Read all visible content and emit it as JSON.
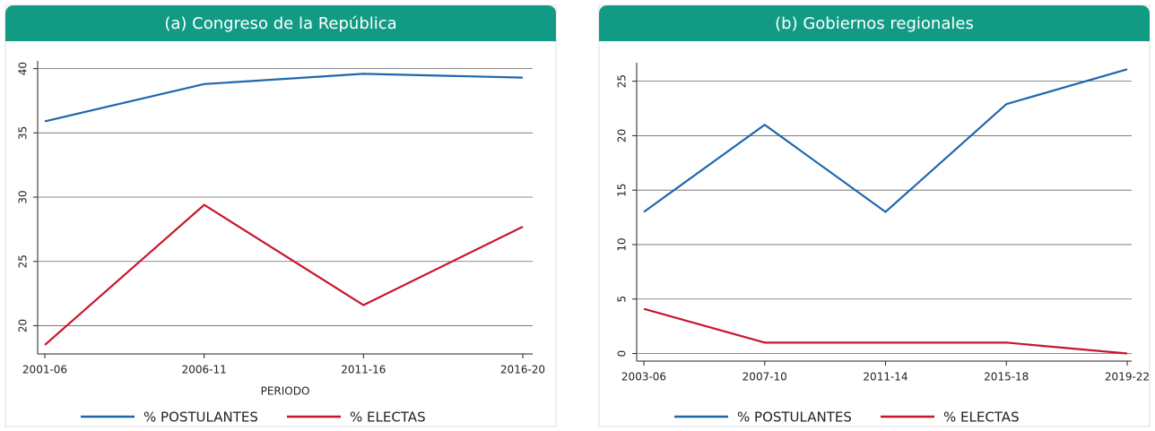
{
  "chart_data": [
    {
      "type": "line",
      "title": "(a) Congreso de la República",
      "categories": [
        "2001-06",
        "2006-11",
        "2011-16",
        "2016-20"
      ],
      "x_label": "PERIODO",
      "series": [
        {
          "name": "% POSTULANTES",
          "color": "#1f67ad",
          "values": [
            35.9,
            38.8,
            39.6,
            39.3
          ]
        },
        {
          "name": "% ELECTAS",
          "color": "#c8152c",
          "values": [
            18.5,
            29.4,
            21.6,
            27.7
          ]
        }
      ],
      "ylim": [
        17.8,
        40.6
      ],
      "yticks": [
        20,
        25,
        30,
        35,
        40
      ],
      "grid": true
    },
    {
      "type": "line",
      "title": "(b) Gobiernos regionales",
      "categories": [
        "2003-06",
        "2007-10",
        "2011-14",
        "2015-18",
        "2019-22"
      ],
      "series": [
        {
          "name": "% POSTULANTES",
          "color": "#1f67ad",
          "values": [
            13.0,
            21.0,
            13.0,
            22.9,
            26.1
          ]
        },
        {
          "name": "% ELECTAS",
          "color": "#c8152c",
          "values": [
            4.1,
            1.0,
            1.0,
            1.0,
            0
          ]
        }
      ],
      "ylim": [
        -0.7,
        26.7
      ],
      "yticks": [
        0,
        5,
        10,
        15,
        20,
        25
      ],
      "grid": true
    }
  ]
}
